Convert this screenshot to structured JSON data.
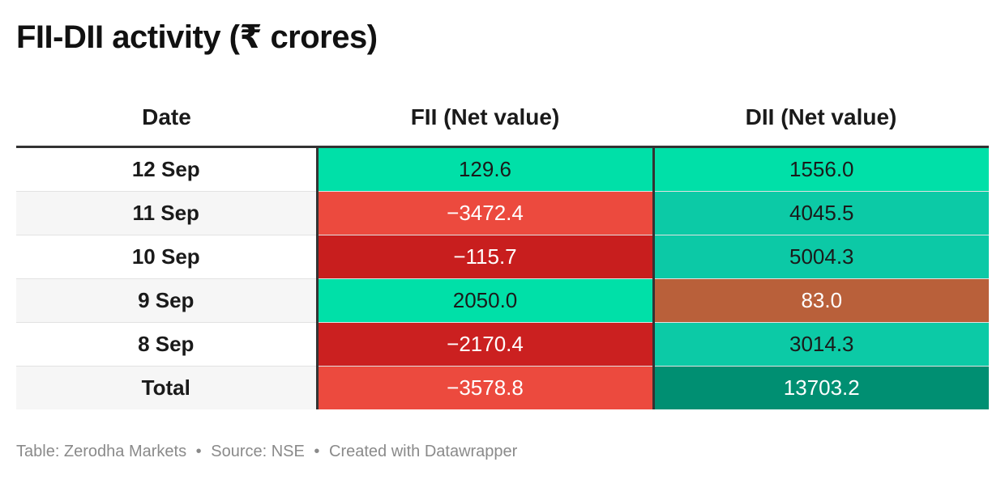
{
  "title": "FII-DII activity (₹ crores)",
  "footer": {
    "table_credit": "Table: Zerodha Markets",
    "source": "Source: NSE",
    "created_with": "Created with Datawrapper",
    "separator": "•"
  },
  "chart_data": {
    "type": "table",
    "title": "FII-DII activity (₹ crores)",
    "columns": [
      "Date",
      "FII (Net value)",
      "DII (Net value)"
    ],
    "rows": [
      {
        "date": "12 Sep",
        "fii": "129.6",
        "dii": "1556.0",
        "fii_color": "#00e0a8",
        "dii_color": "#00e0a8",
        "fii_text_color": "#1a1a1a",
        "dii_text_color": "#1a1a1a"
      },
      {
        "date": "11 Sep",
        "fii": "−3472.4",
        "dii": "4045.5",
        "fii_color": "#ec4a3e",
        "dii_color": "#0ccaa6",
        "fii_text_color": "#ffffff",
        "dii_text_color": "#1a1a1a"
      },
      {
        "date": "10 Sep",
        "fii": "−115.7",
        "dii": "5004.3",
        "fii_color": "#c81e1e",
        "dii_color": "#0cc9a6",
        "fii_text_color": "#ffffff",
        "dii_text_color": "#1a1a1a"
      },
      {
        "date": "9 Sep",
        "fii": "2050.0",
        "dii": "83.0",
        "fii_color": "#00e0a8",
        "dii_color": "#b9603a",
        "fii_text_color": "#1a1a1a",
        "dii_text_color": "#ffffff"
      },
      {
        "date": "8 Sep",
        "fii": "−2170.4",
        "dii": "3014.3",
        "fii_color": "#cb2020",
        "dii_color": "#0ccaa6",
        "fii_text_color": "#ffffff",
        "dii_text_color": "#1a1a1a"
      },
      {
        "date": "Total",
        "fii": "−3578.8",
        "dii": "13703.2",
        "fii_color": "#ec4a3e",
        "dii_color": "#008f72",
        "fii_text_color": "#ffffff",
        "dii_text_color": "#ffffff"
      }
    ]
  }
}
